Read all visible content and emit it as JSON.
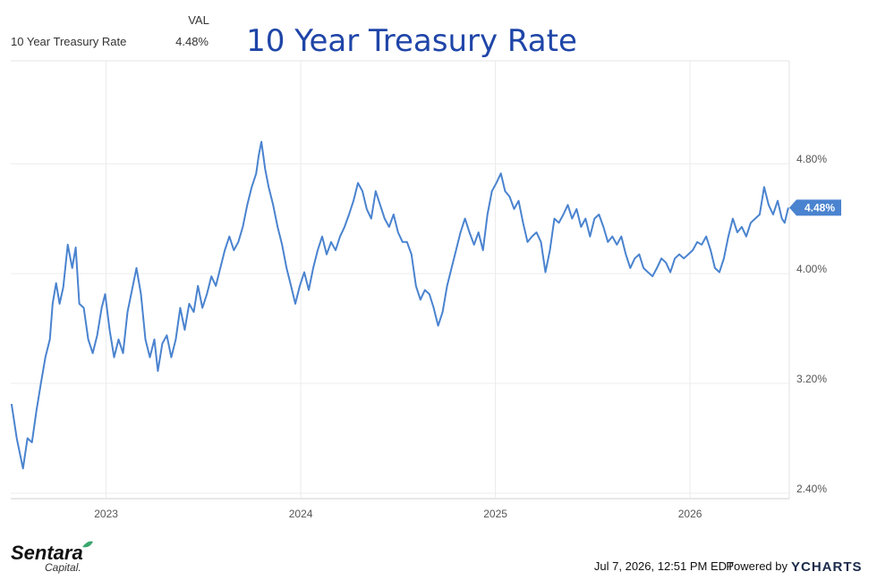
{
  "chart_data": {
    "type": "line",
    "title": "10 Year Treasury Rate",
    "legend_header": "VAL",
    "x": [
      2022.514,
      2022.541,
      2022.573,
      2022.596,
      2022.619,
      2022.642,
      2022.665,
      2022.688,
      2022.711,
      2022.725,
      2022.743,
      2022.761,
      2022.78,
      2022.803,
      2022.826,
      2022.844,
      2022.862,
      2022.885,
      2022.908,
      2022.931,
      2022.954,
      2022.977,
      2022.995,
      2023.018,
      2023.041,
      2023.064,
      2023.087,
      2023.11,
      2023.133,
      2023.156,
      2023.179,
      2023.202,
      2023.225,
      2023.248,
      2023.266,
      2023.289,
      2023.312,
      2023.335,
      2023.358,
      2023.381,
      2023.404,
      2023.427,
      2023.45,
      2023.472,
      2023.495,
      2023.518,
      2023.541,
      2023.564,
      2023.587,
      2023.61,
      2023.633,
      2023.656,
      2023.679,
      2023.702,
      2023.725,
      2023.748,
      2023.771,
      2023.784,
      2023.798,
      2023.817,
      2023.835,
      2023.858,
      2023.881,
      2023.904,
      2023.927,
      2023.95,
      2023.972,
      2023.995,
      2024.018,
      2024.041,
      2024.064,
      2024.087,
      2024.11,
      2024.133,
      2024.156,
      2024.179,
      2024.202,
      2024.225,
      2024.248,
      2024.271,
      2024.294,
      2024.317,
      2024.339,
      2024.362,
      2024.385,
      2024.408,
      2024.431,
      2024.454,
      2024.477,
      2024.5,
      2024.523,
      2024.546,
      2024.569,
      2024.592,
      2024.615,
      2024.638,
      2024.661,
      2024.683,
      2024.706,
      2024.729,
      2024.752,
      2024.775,
      2024.798,
      2024.821,
      2024.844,
      2024.867,
      2024.89,
      2024.913,
      2024.936,
      2024.959,
      2024.982,
      2025.005,
      2025.028,
      2025.05,
      2025.073,
      2025.096,
      2025.119,
      2025.142,
      2025.165,
      2025.188,
      2025.211,
      2025.234,
      2025.257,
      2025.28,
      2025.303,
      2025.326,
      2025.349,
      2025.372,
      2025.394,
      2025.417,
      2025.44,
      2025.463,
      2025.486,
      2025.509,
      2025.532,
      2025.555,
      2025.578,
      2025.601,
      2025.624,
      2025.647,
      2025.67,
      2025.693,
      2025.716,
      2025.739,
      2025.761,
      2025.784,
      2025.807,
      2025.83,
      2025.853,
      2025.876,
      2025.899,
      2025.922,
      2025.945,
      2025.968,
      2025.991,
      2026.014,
      2026.037,
      2026.06,
      2026.083,
      2026.106,
      2026.128,
      2026.151,
      2026.174,
      2026.197,
      2026.22,
      2026.243,
      2026.266,
      2026.289,
      2026.312,
      2026.335,
      2026.358,
      2026.381,
      2026.404,
      2026.427,
      2026.45,
      2026.472,
      2026.486,
      2026.505
    ],
    "series": [
      {
        "name": "10 Year Treasury Rate",
        "color": "#4a83cf",
        "last_label": "4.48%",
        "values": [
          3.05,
          2.8,
          2.58,
          2.8,
          2.77,
          3.0,
          3.2,
          3.39,
          3.52,
          3.78,
          3.93,
          3.78,
          3.9,
          4.21,
          4.04,
          4.19,
          3.78,
          3.75,
          3.52,
          3.42,
          3.55,
          3.75,
          3.85,
          3.59,
          3.39,
          3.52,
          3.42,
          3.72,
          3.88,
          4.04,
          3.85,
          3.52,
          3.39,
          3.52,
          3.29,
          3.49,
          3.55,
          3.39,
          3.52,
          3.75,
          3.59,
          3.78,
          3.72,
          3.91,
          3.75,
          3.85,
          3.98,
          3.91,
          4.04,
          4.17,
          4.27,
          4.17,
          4.23,
          4.34,
          4.5,
          4.63,
          4.73,
          4.86,
          4.96,
          4.76,
          4.63,
          4.5,
          4.34,
          4.21,
          4.04,
          3.91,
          3.78,
          3.91,
          4.01,
          3.88,
          4.04,
          4.17,
          4.27,
          4.14,
          4.23,
          4.17,
          4.27,
          4.34,
          4.43,
          4.53,
          4.66,
          4.6,
          4.47,
          4.4,
          4.6,
          4.5,
          4.4,
          4.34,
          4.43,
          4.3,
          4.23,
          4.23,
          4.14,
          3.91,
          3.81,
          3.88,
          3.85,
          3.75,
          3.62,
          3.72,
          3.91,
          4.04,
          4.17,
          4.3,
          4.4,
          4.3,
          4.21,
          4.3,
          4.17,
          4.43,
          4.6,
          4.66,
          4.73,
          4.6,
          4.56,
          4.47,
          4.53,
          4.37,
          4.23,
          4.27,
          4.3,
          4.23,
          4.01,
          4.17,
          4.4,
          4.37,
          4.43,
          4.5,
          4.4,
          4.47,
          4.34,
          4.4,
          4.27,
          4.4,
          4.43,
          4.34,
          4.23,
          4.27,
          4.21,
          4.27,
          4.14,
          4.04,
          4.11,
          4.14,
          4.04,
          4.01,
          3.98,
          4.04,
          4.11,
          4.08,
          4.01,
          4.11,
          4.14,
          4.11,
          4.14,
          4.17,
          4.23,
          4.21,
          4.27,
          4.17,
          4.04,
          4.01,
          4.11,
          4.27,
          4.4,
          4.3,
          4.34,
          4.27,
          4.37,
          4.4,
          4.43,
          4.63,
          4.5,
          4.43,
          4.53,
          4.4,
          4.37,
          4.48
        ]
      }
    ],
    "xlim": [
      2022.51,
      2026.51
    ],
    "xticks": [
      2023,
      2024,
      2025,
      2026
    ],
    "ylim": [
      2.36,
      5.55
    ],
    "yticks": [
      {
        "value": 2.4,
        "label": "2.40%"
      },
      {
        "value": 3.2,
        "label": "3.20%"
      },
      {
        "value": 4.0,
        "label": "4.00%"
      },
      {
        "value": 4.8,
        "label": "4.80%"
      }
    ],
    "grid": true
  },
  "footer": {
    "timestamp": "Jul 7, 2026, 12:51 PM EDT",
    "powered_by": "Powered by",
    "brand": "YCHARTS"
  },
  "logo": {
    "name": "Sentara",
    "sub": "Capital."
  }
}
